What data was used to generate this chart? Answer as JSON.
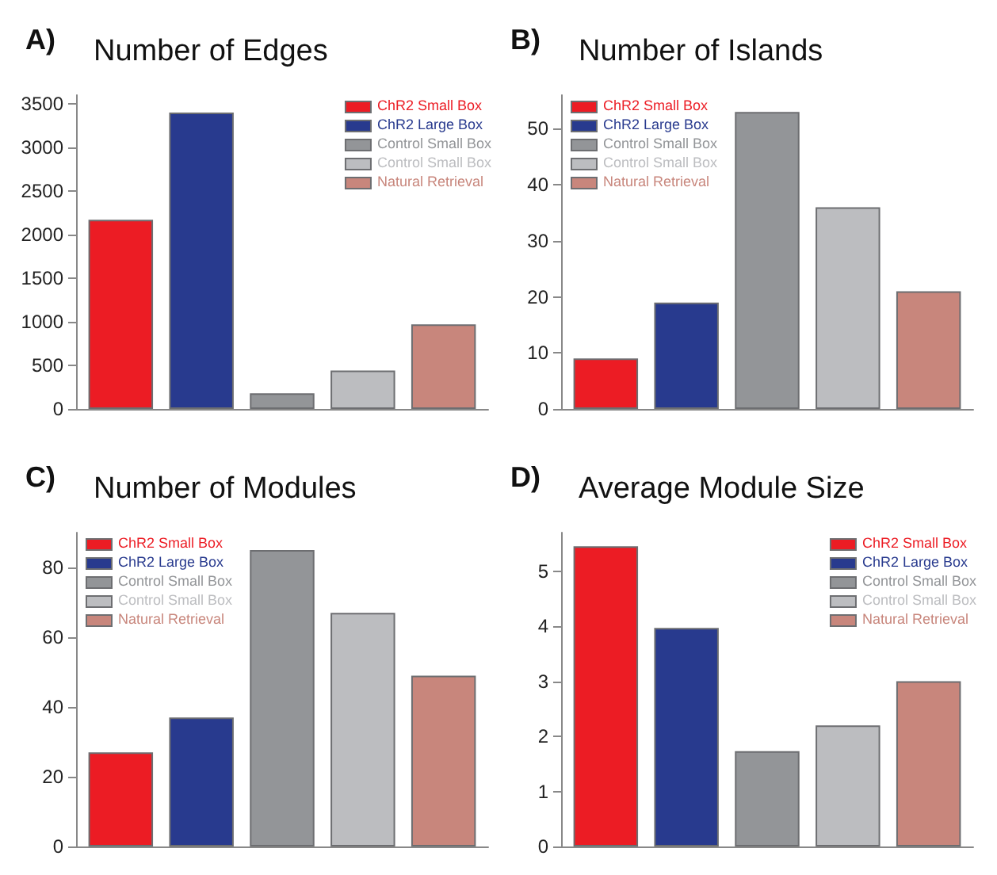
{
  "chart_data": [
    {
      "type": "bar",
      "title": "Number of Edges",
      "annotations": [
        "A)"
      ],
      "categories": [
        null
      ],
      "legend": "top right",
      "ylim": [
        0,
        3600
      ],
      "yticks": [
        0,
        500,
        1000,
        1500,
        2000,
        2500,
        3000,
        3500
      ],
      "series": [
        {
          "name": "ChR2 Small Box",
          "color": "#ec1c24",
          "values": [
            2170
          ]
        },
        {
          "name": "ChR2 Large Box",
          "color": "#283a8e",
          "values": [
            3400
          ]
        },
        {
          "name": "Control Small Box",
          "color": "#939598",
          "values": [
            180
          ]
        },
        {
          "name": "Control Small Box",
          "color": "#bcbdc0",
          "values": [
            440
          ]
        },
        {
          "name": "Natural Retrieval",
          "color": "#c8867c",
          "values": [
            970
          ]
        }
      ]
    },
    {
      "type": "bar",
      "title": "Number of Islands",
      "annotations": [
        "B)"
      ],
      "categories": [
        null
      ],
      "legend": "top left",
      "ylim": [
        0,
        56
      ],
      "yticks": [
        0,
        10,
        20,
        30,
        40,
        50
      ],
      "series": [
        {
          "name": "ChR2 Small Box",
          "color": "#ec1c24",
          "values": [
            9
          ]
        },
        {
          "name": "ChR2 Large Box",
          "color": "#283a8e",
          "values": [
            19
          ]
        },
        {
          "name": "Control Small Box",
          "color": "#939598",
          "values": [
            53
          ]
        },
        {
          "name": "Control Small Box",
          "color": "#bcbdc0",
          "values": [
            36
          ]
        },
        {
          "name": "Natural Retrieval",
          "color": "#c8867c",
          "values": [
            21
          ]
        }
      ]
    },
    {
      "type": "bar",
      "title": "Number of Modules",
      "annotations": [
        "C)"
      ],
      "categories": [
        null
      ],
      "legend": "top left",
      "ylim": [
        0,
        90
      ],
      "yticks": [
        0,
        20,
        40,
        60,
        80
      ],
      "series": [
        {
          "name": "ChR2 Small Box",
          "color": "#ec1c24",
          "values": [
            27
          ]
        },
        {
          "name": "ChR2 Large Box",
          "color": "#283a8e",
          "values": [
            37
          ]
        },
        {
          "name": "Control Small Box",
          "color": "#939598",
          "values": [
            85
          ]
        },
        {
          "name": "Control Small Box",
          "color": "#bcbdc0",
          "values": [
            67
          ]
        },
        {
          "name": "Natural Retrieval",
          "color": "#c8867c",
          "values": [
            49
          ]
        }
      ]
    },
    {
      "type": "bar",
      "title": "Average Module Size",
      "annotations": [
        "D)"
      ],
      "categories": [
        null
      ],
      "legend": "top right",
      "ylim": [
        0,
        5.7
      ],
      "yticks": [
        0,
        1,
        2,
        3,
        4,
        5
      ],
      "series": [
        {
          "name": "ChR2 Small Box",
          "color": "#ec1c24",
          "values": [
            5.45
          ]
        },
        {
          "name": "ChR2 Large Box",
          "color": "#283a8e",
          "values": [
            3.97
          ]
        },
        {
          "name": "Control Small Box",
          "color": "#939598",
          "values": [
            1.73
          ]
        },
        {
          "name": "Control Small Box",
          "color": "#bcbdc0",
          "values": [
            2.2
          ]
        },
        {
          "name": "Natural Retrieval",
          "color": "#c8867c",
          "values": [
            3.0
          ]
        }
      ]
    }
  ]
}
